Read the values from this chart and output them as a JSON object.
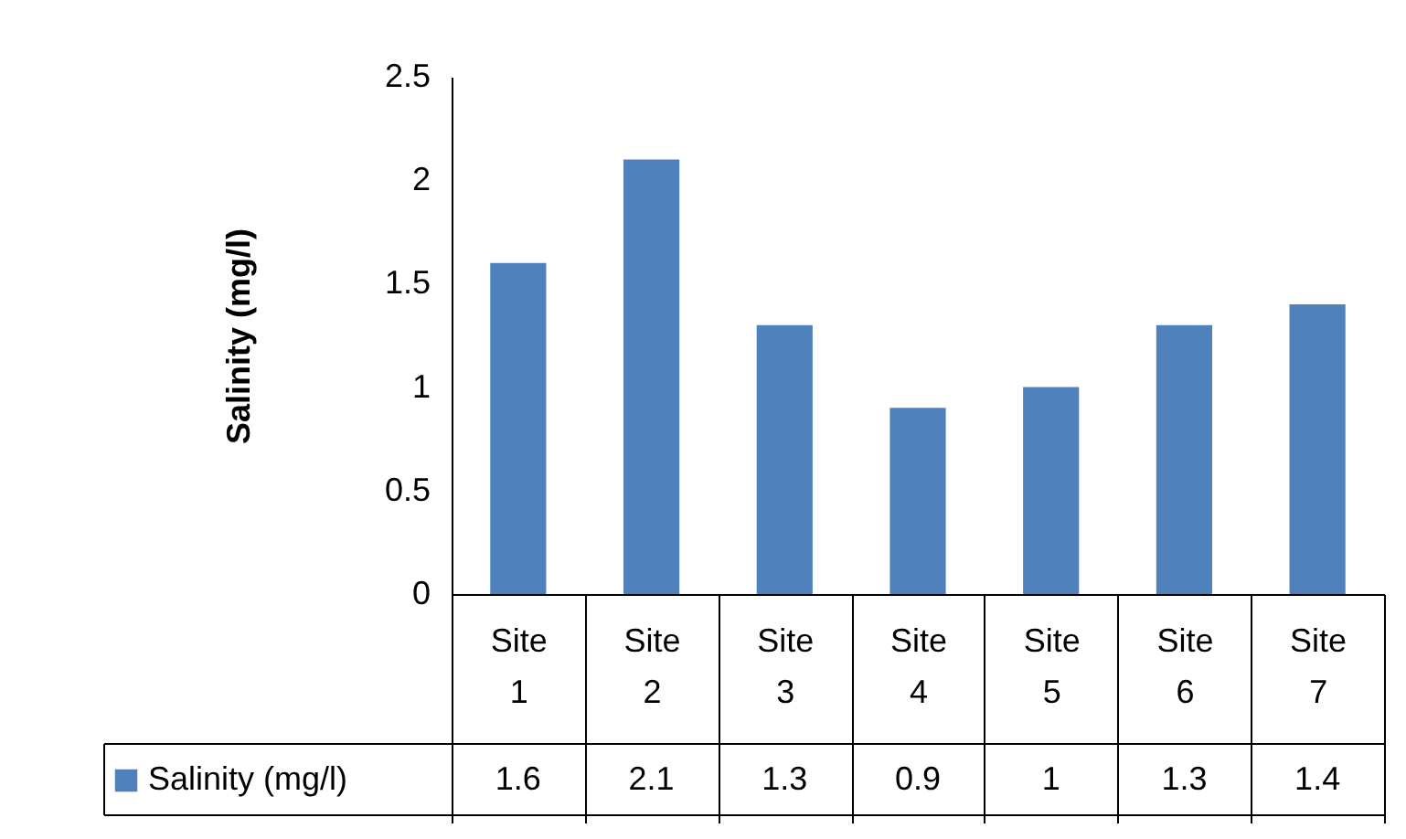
{
  "chart_data": {
    "type": "bar",
    "ylabel": "Salinity (mg/l)",
    "categories": [
      "Site 1",
      "Site 2",
      "Site 3",
      "Site 4",
      "Site 5",
      "Site 6",
      "Site 7"
    ],
    "series": [
      {
        "name": "Salinity (mg/l)",
        "color": "#4f81bd",
        "values": [
          1.6,
          2.1,
          1.3,
          0.9,
          1,
          1.3,
          1.4
        ]
      }
    ],
    "ylim": [
      0,
      2.5
    ],
    "yticks": [
      0,
      0.5,
      1,
      1.5,
      2,
      2.5
    ],
    "grid": false,
    "data_labels": true,
    "legend": "bottom left"
  }
}
